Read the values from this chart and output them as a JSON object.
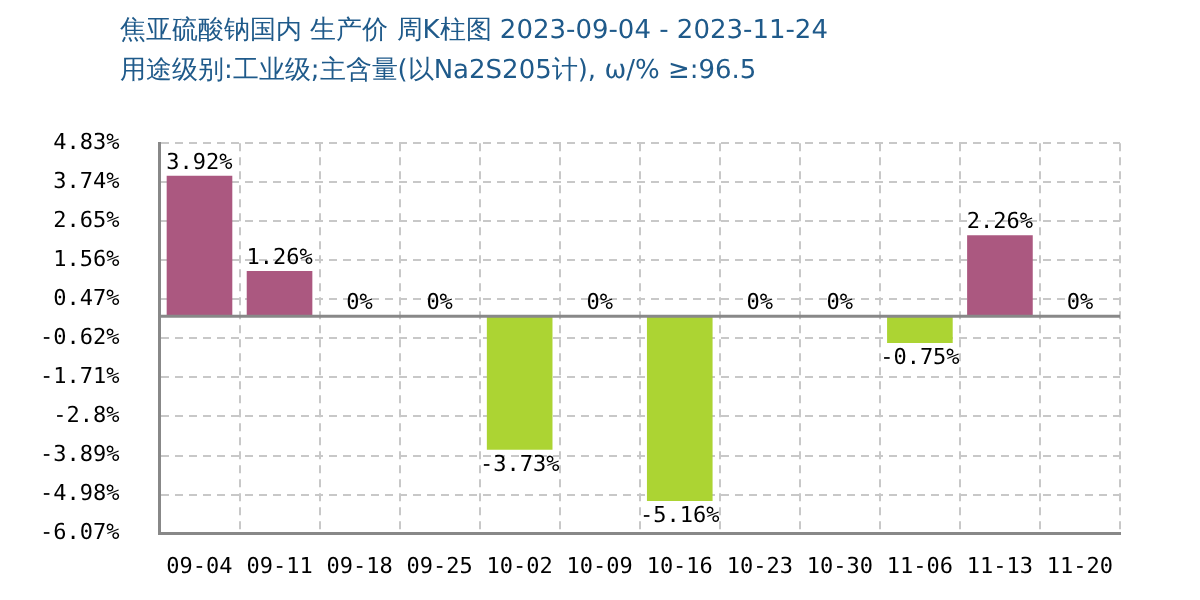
{
  "chart_data": {
    "type": "bar",
    "title": "焦亚硫酸钠国内 生产价 周K柱图 2023-09-04 - 2023-11-24",
    "subtitle": "用途级别:工业级;主含量(以Na2S205计), ω/% ≥:96.5",
    "categories": [
      "09-04",
      "09-11",
      "09-18",
      "09-25",
      "10-02",
      "10-09",
      "10-16",
      "10-23",
      "10-30",
      "11-06",
      "11-13",
      "11-20"
    ],
    "values": [
      3.92,
      1.26,
      0,
      0,
      -3.73,
      0,
      -5.16,
      0,
      0,
      -0.75,
      2.26,
      0
    ],
    "colors": [
      "#ab5880",
      "#ab5880",
      "#ab5880",
      "#ab5880",
      "#acd433",
      "#ab5880",
      "#acd433",
      "#ab5880",
      "#ab5880",
      "#acd433",
      "#ab5880",
      "#ab5880"
    ],
    "value_labels": [
      "3.92%",
      "1.26%",
      "0%",
      "0%",
      "-3.73%",
      "0%",
      "-5.16%",
      "0%",
      "0%",
      "-0.75%",
      "2.26%",
      "0%"
    ],
    "ylim": [
      -6.07,
      4.83
    ],
    "yticks": [
      {
        "value": 4.83,
        "label": "4.83%"
      },
      {
        "value": 3.74,
        "label": "3.74%"
      },
      {
        "value": 2.65,
        "label": "2.65%"
      },
      {
        "value": 1.56,
        "label": "1.56%"
      },
      {
        "value": 0.47,
        "label": "0.47%"
      },
      {
        "value": -0.62,
        "label": "-0.62%"
      },
      {
        "value": -1.71,
        "label": "-1.71%"
      },
      {
        "value": -2.8,
        "label": "-2.8%"
      },
      {
        "value": -3.89,
        "label": "-3.89%"
      },
      {
        "value": -4.98,
        "label": "-4.98%"
      },
      {
        "value": -6.07,
        "label": "-6.07%"
      }
    ],
    "ref_lines": [
      {
        "axis": "y",
        "value": 0,
        "color": "#888888"
      }
    ],
    "grid": true,
    "legend": false
  }
}
